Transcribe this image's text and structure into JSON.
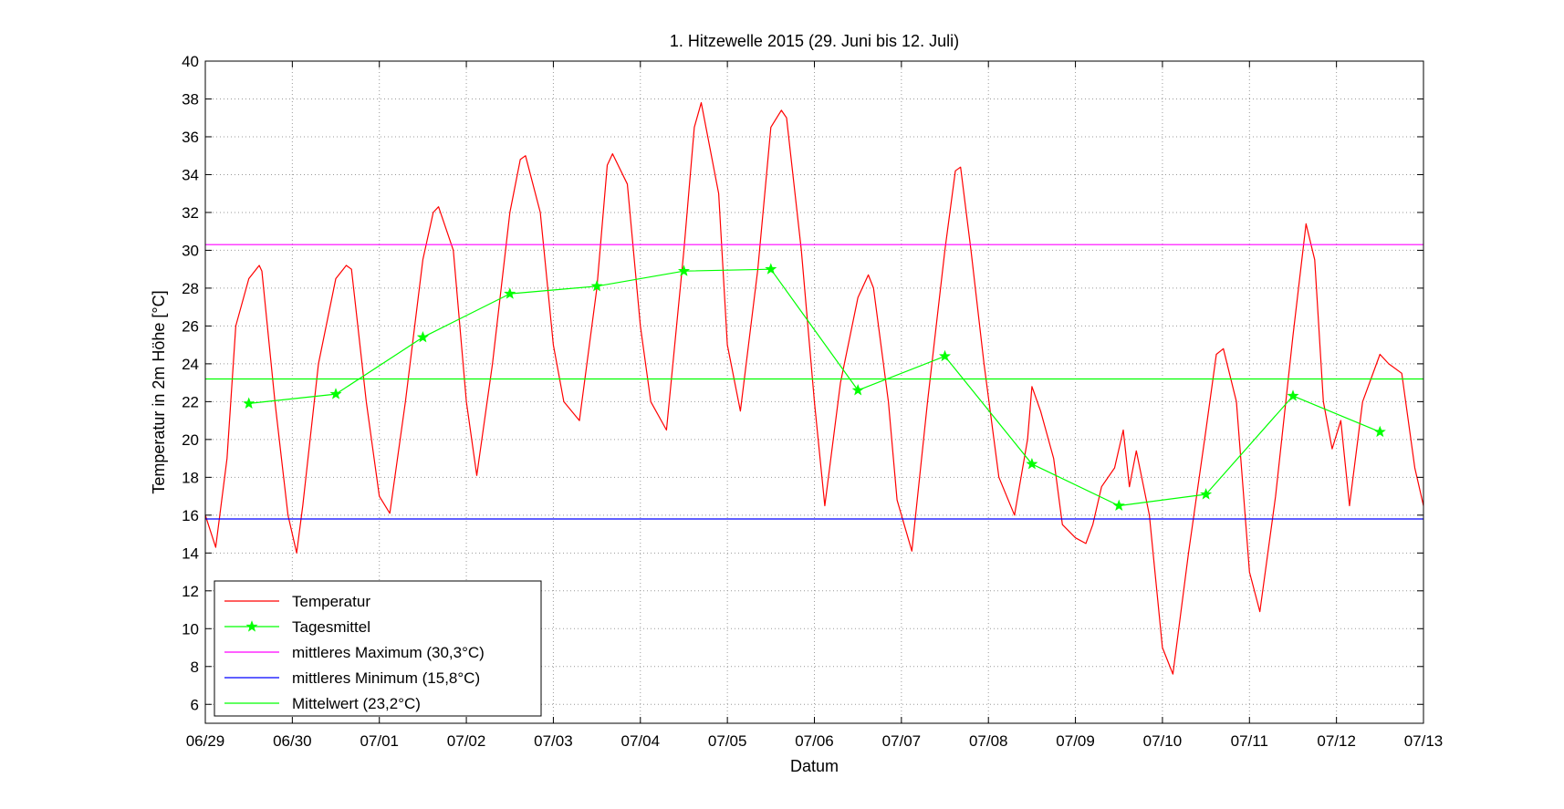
{
  "chart_data": {
    "type": "line",
    "title": "1. Hitzewelle 2015 (29. Juni bis 12. Juli)",
    "xlabel": "Datum",
    "ylabel": "Temperatur in 2m Höhe [°C]",
    "xlim": [
      0,
      14
    ],
    "ylim": [
      5,
      40
    ],
    "yticks": [
      6,
      8,
      10,
      12,
      14,
      16,
      18,
      20,
      22,
      24,
      26,
      28,
      30,
      32,
      34,
      36,
      38,
      40
    ],
    "xtick_labels": [
      "06/29",
      "06/30",
      "07/01",
      "07/02",
      "07/03",
      "07/04",
      "07/05",
      "07/06",
      "07/07",
      "07/08",
      "07/09",
      "07/10",
      "07/11",
      "07/12",
      "07/13"
    ],
    "grid": true,
    "legend_position": "bottom-left",
    "colors": {
      "temperature": "#ff0000",
      "daily_mean": "#00ff00",
      "mean_max": "#ff00ff",
      "mean_min": "#0000ff",
      "mean": "#00ff00"
    },
    "series": [
      {
        "name": "Temperatur",
        "style": "line",
        "x": [
          0.0,
          0.12,
          0.25,
          0.35,
          0.5,
          0.62,
          0.65,
          0.8,
          0.95,
          1.05,
          1.12,
          1.3,
          1.5,
          1.62,
          1.68,
          1.85,
          2.0,
          2.12,
          2.3,
          2.5,
          2.62,
          2.68,
          2.85,
          3.0,
          3.12,
          3.3,
          3.5,
          3.62,
          3.68,
          3.85,
          4.0,
          4.12,
          4.3,
          4.5,
          4.62,
          4.68,
          4.85,
          5.0,
          5.12,
          5.3,
          5.5,
          5.62,
          5.7,
          5.9,
          6.0,
          6.15,
          6.35,
          6.5,
          6.62,
          6.68,
          6.85,
          7.0,
          7.12,
          7.3,
          7.5,
          7.62,
          7.68,
          7.85,
          7.95,
          8.12,
          8.3,
          8.5,
          8.62,
          8.68,
          8.8,
          8.95,
          9.12,
          9.3,
          9.45,
          9.5,
          9.6,
          9.75,
          9.85,
          10.0,
          10.12,
          10.2,
          10.3,
          10.45,
          10.55,
          10.62,
          10.7,
          10.85,
          11.0,
          11.12,
          11.3,
          11.5,
          11.62,
          11.7,
          11.85,
          12.0,
          12.12,
          12.3,
          12.5,
          12.65,
          12.75,
          12.85,
          12.95,
          13.05,
          13.15,
          13.3,
          13.5,
          13.6,
          13.75,
          13.9,
          14.0
        ],
        "y": [
          16.0,
          14.3,
          19.0,
          26.0,
          28.5,
          29.2,
          28.9,
          22.0,
          16.0,
          14.0,
          16.5,
          24.0,
          28.5,
          29.2,
          29.0,
          22.0,
          17.0,
          16.1,
          22.0,
          29.5,
          32.0,
          32.3,
          30.0,
          22.0,
          18.1,
          24.0,
          32.0,
          34.8,
          35.0,
          32.0,
          25.0,
          22.0,
          21.0,
          28.0,
          34.5,
          35.1,
          33.5,
          26.0,
          22.0,
          20.5,
          30.0,
          36.5,
          37.8,
          33.0,
          25.0,
          21.5,
          29.0,
          36.5,
          37.4,
          37.0,
          30.0,
          22.0,
          16.5,
          23.0,
          27.5,
          28.7,
          28.0,
          22.0,
          16.8,
          14.1,
          22.0,
          30.0,
          34.2,
          34.4,
          30.0,
          24.0,
          18.0,
          16.0,
          20.0,
          22.8,
          21.5,
          19.0,
          15.5,
          14.8,
          14.5,
          15.5,
          17.5,
          18.5,
          20.5,
          17.5,
          19.4,
          16.0,
          9.0,
          7.6,
          14.0,
          20.5,
          24.5,
          24.8,
          22.0,
          13.0,
          10.9,
          17.0,
          25.5,
          31.4,
          29.5,
          22.0,
          19.5,
          21.0,
          16.5,
          22.0,
          24.5,
          24.0,
          23.5,
          18.5,
          16.5
        ]
      },
      {
        "name": "Tagesmittel",
        "style": "line-star",
        "x": [
          0.5,
          1.5,
          2.5,
          3.5,
          4.5,
          5.5,
          6.5,
          7.5,
          8.5,
          9.5,
          10.5,
          11.5,
          12.5,
          13.5
        ],
        "y": [
          21.9,
          22.4,
          25.4,
          27.7,
          28.1,
          28.9,
          29.0,
          22.6,
          24.4,
          18.7,
          16.5,
          17.1,
          22.3,
          20.4
        ]
      },
      {
        "name": "mittleres Maximum (30,3°C)",
        "style": "hline",
        "x": [
          0,
          14
        ],
        "y": [
          30.3,
          30.3
        ]
      },
      {
        "name": "mittleres Minimum (15,8°C)",
        "style": "hline",
        "x": [
          0,
          14
        ],
        "y": [
          15.8,
          15.8
        ]
      },
      {
        "name": "Mittelwert (23,2°C)",
        "style": "hline",
        "x": [
          0,
          14
        ],
        "y": [
          23.2,
          23.2
        ]
      }
    ]
  }
}
